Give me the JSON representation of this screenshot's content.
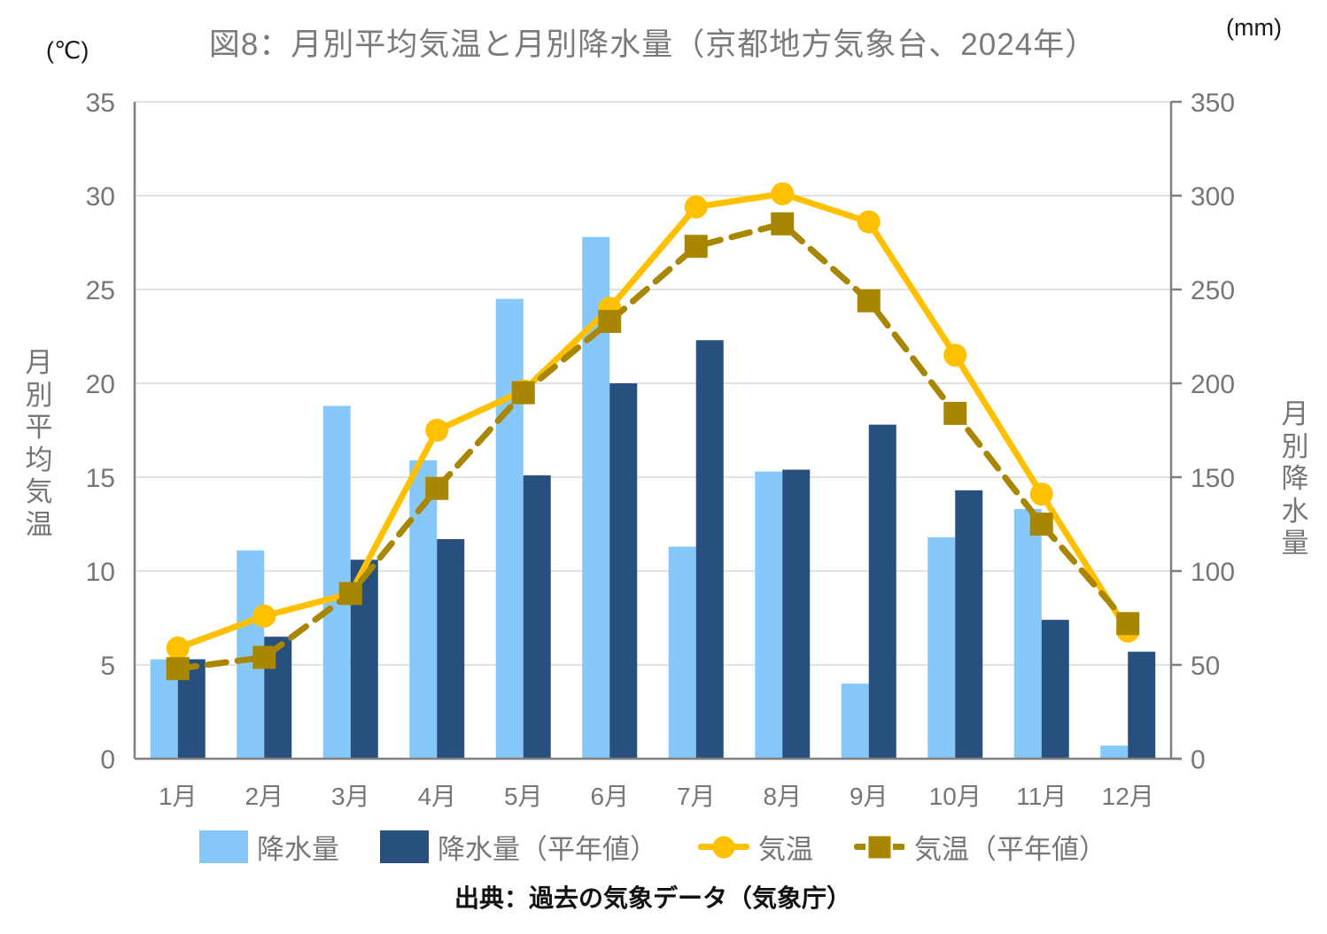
{
  "header": {
    "title": "図8：月別平均気温と月別降水量（京都地方気象台、2024年）",
    "unit_left": "(℃)",
    "unit_right": "(mm)"
  },
  "axes": {
    "left": {
      "title": "月別平均気温"
    },
    "right": {
      "title": "月別降水量"
    }
  },
  "source": "出典：過去の気象データ（気象庁）",
  "colors": {
    "precip": "#86C8FA",
    "precip_normal": "#27507E",
    "temp": "#FFC000",
    "temp_normal": "#A98600",
    "grid": "#D9D9D9",
    "axis": "#808080",
    "text": "#767676"
  },
  "chart_data": {
    "type": "combo",
    "title": "図8：月別平均気温と月別降水量（京都地方気象台、2024年）",
    "categories": [
      "1月",
      "2月",
      "3月",
      "4月",
      "5月",
      "6月",
      "7月",
      "8月",
      "9月",
      "10月",
      "11月",
      "12月"
    ],
    "series": [
      {
        "name": "降水量",
        "type": "bar",
        "axis": "right",
        "color": "#86C8FA",
        "values": [
          53,
          111,
          188,
          159,
          245,
          278,
          113,
          153,
          40,
          118,
          133,
          7
        ]
      },
      {
        "name": "降水量（平年値）",
        "type": "bar",
        "axis": "right",
        "color": "#27507E",
        "values": [
          53,
          65,
          106,
          117,
          151,
          200,
          223,
          154,
          178,
          143,
          74,
          57
        ]
      },
      {
        "name": "気温",
        "type": "line",
        "style": "solid",
        "marker": "circle",
        "axis": "left",
        "color": "#FFC000",
        "values": [
          5.9,
          7.6,
          8.8,
          17.5,
          19.6,
          24.0,
          29.4,
          30.1,
          28.6,
          21.5,
          14.1,
          6.8
        ]
      },
      {
        "name": "気温（平年値）",
        "type": "line",
        "style": "dashed",
        "marker": "square",
        "axis": "left",
        "color": "#A98600",
        "values": [
          4.8,
          5.4,
          8.8,
          14.4,
          19.5,
          23.3,
          27.3,
          28.5,
          24.4,
          18.4,
          12.5,
          7.2
        ]
      }
    ],
    "left_axis": {
      "label": "月別平均気温",
      "unit": "℃",
      "range": [
        0,
        35
      ],
      "ticks": [
        0,
        5,
        10,
        15,
        20,
        25,
        30,
        35
      ]
    },
    "right_axis": {
      "label": "月別降水量",
      "unit": "mm",
      "range": [
        0,
        350
      ],
      "ticks": [
        0,
        50,
        100,
        150,
        200,
        250,
        300,
        350
      ]
    },
    "grid": "horizontal",
    "legend_position": "bottom"
  }
}
